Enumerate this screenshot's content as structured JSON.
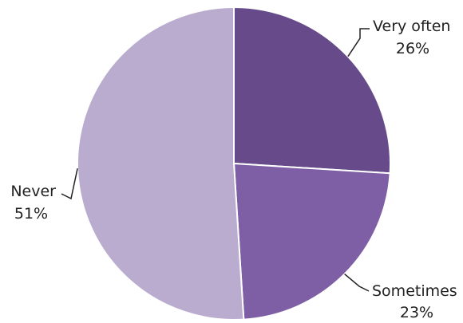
{
  "chart_data": {
    "type": "pie",
    "title": "",
    "slices": [
      {
        "label": "Very often",
        "value": 26,
        "value_label": "26%",
        "color": "#674A8A"
      },
      {
        "label": "Sometimes",
        "value": 23,
        "value_label": "23%",
        "color": "#7E5FA5"
      },
      {
        "label": "Never",
        "value": 51,
        "value_label": "51%",
        "color": "#B9ACCF"
      }
    ],
    "start_angle": "12 o'clock",
    "direction": "clockwise",
    "legend": "none"
  }
}
